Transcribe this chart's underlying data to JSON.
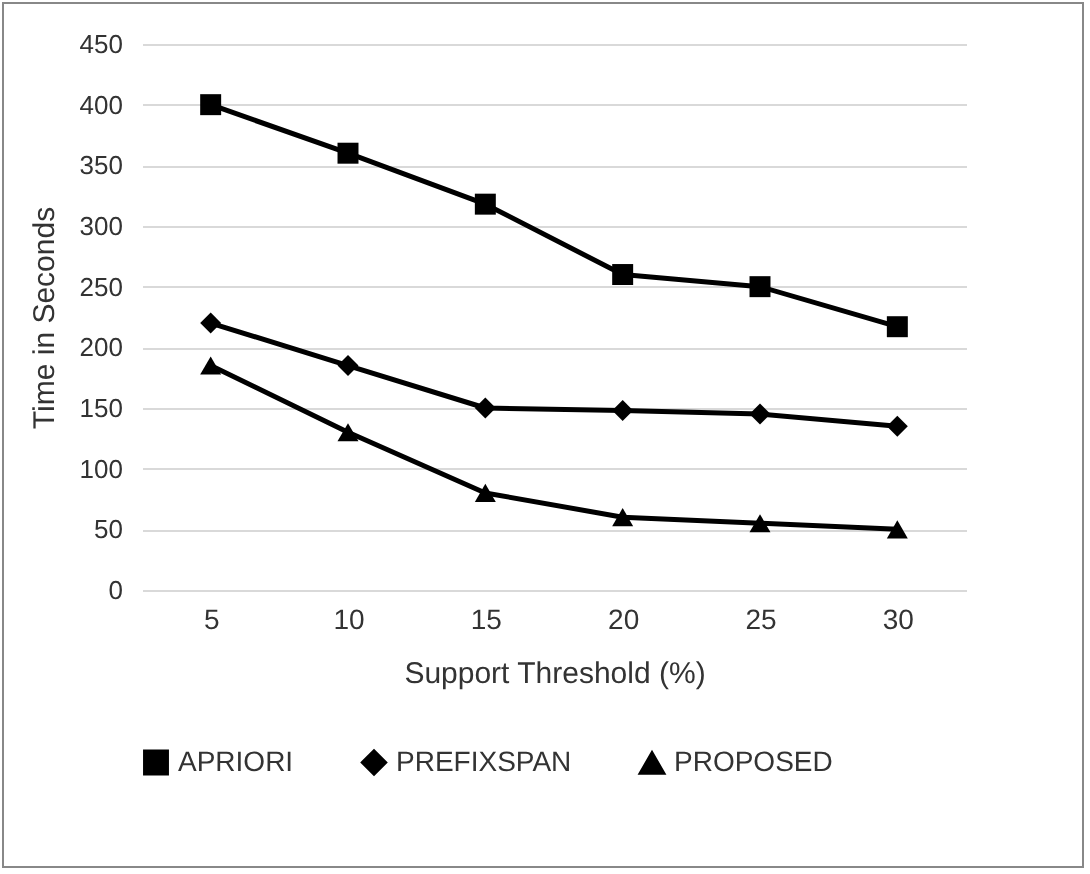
{
  "chart_data": {
    "type": "line",
    "xlabel": "Support Threshold (%)",
    "ylabel": "Time in Seconds",
    "categories": [
      "5",
      "10",
      "15",
      "20",
      "25",
      "30"
    ],
    "series": [
      {
        "name": "APRIORI",
        "color": "#000000",
        "marker": "square",
        "values": [
          400,
          360,
          318,
          260,
          250,
          217
        ]
      },
      {
        "name": "PREFIXSPAN",
        "color": "#000000",
        "marker": "diamond",
        "values": [
          220,
          185,
          150,
          148,
          145,
          135
        ]
      },
      {
        "name": "PROPOSED",
        "color": "#000000",
        "marker": "triangle",
        "values": [
          185,
          130,
          80,
          60,
          55,
          50
        ]
      }
    ],
    "ylim": [
      0,
      450
    ],
    "yticks": [
      0,
      50,
      100,
      150,
      200,
      250,
      300,
      350,
      400,
      450
    ],
    "grid": "y",
    "legend": "bottom",
    "line_style": "solid"
  }
}
